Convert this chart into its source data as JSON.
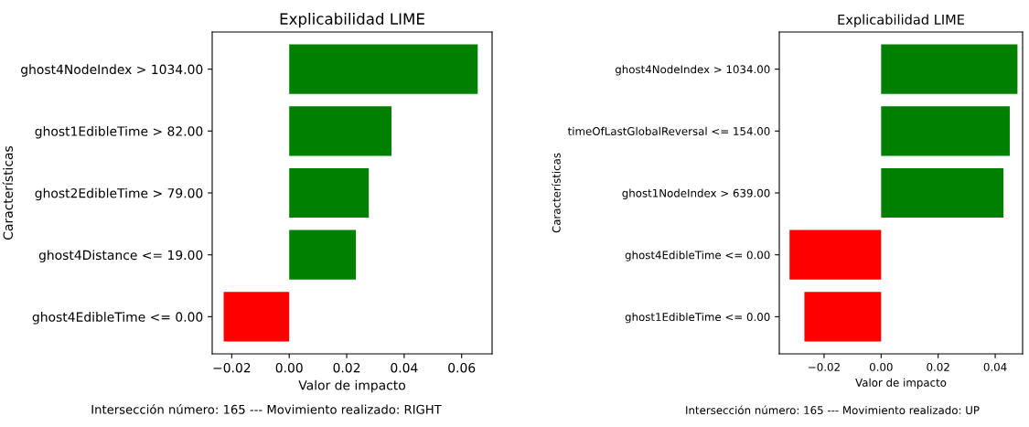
{
  "chart_data": [
    {
      "type": "bar",
      "orientation": "horizontal",
      "title": "Explicabilidad LIME",
      "xlabel": "Valor de impacto",
      "ylabel": "Características",
      "categories": [
        "ghost4NodeIndex > 1034.00",
        "ghost1EdibleTime > 82.00",
        "ghost2EdibleTime > 79.00",
        "ghost4Distance <= 19.00",
        "ghost4EdibleTime <= 0.00"
      ],
      "values": [
        0.0656,
        0.0356,
        0.0277,
        0.0232,
        -0.0228
      ],
      "colors": [
        "#008000",
        "#008000",
        "#008000",
        "#008000",
        "#ff0000"
      ],
      "xlim": [
        -0.0268,
        0.0706
      ],
      "xticks": [
        {
          "value": -0.02,
          "label": "−0.02"
        },
        {
          "value": 0.0,
          "label": "0.00"
        },
        {
          "value": 0.02,
          "label": "0.02"
        },
        {
          "value": 0.04,
          "label": "0.04"
        },
        {
          "value": 0.06,
          "label": "0.06"
        }
      ],
      "grid": false,
      "legend": false,
      "annotations": [
        "Intersección número: 165 --- Movimiento realizado: RIGHT"
      ]
    },
    {
      "type": "bar",
      "orientation": "horizontal",
      "title": "Explicabilidad LIME",
      "xlabel": "Valor de impacto",
      "ylabel": "Características",
      "categories": [
        "ghost4NodeIndex > 1034.00",
        "timeOfLastGlobalReversal <= 154.00",
        "ghost1NodeIndex > 639.00",
        "ghost4EdibleTime <= 0.00",
        "ghost1EdibleTime <= 0.00"
      ],
      "values": [
        0.0478,
        0.0451,
        0.0429,
        -0.0321,
        -0.0269
      ],
      "colors": [
        "#008000",
        "#008000",
        "#008000",
        "#ff0000",
        "#ff0000"
      ],
      "xlim": [
        -0.0357,
        0.0496
      ],
      "xticks": [
        {
          "value": -0.02,
          "label": "−0.02"
        },
        {
          "value": 0.0,
          "label": "0.00"
        },
        {
          "value": 0.02,
          "label": "0.02"
        },
        {
          "value": 0.04,
          "label": "0.04"
        }
      ],
      "grid": false,
      "legend": false,
      "annotations": [
        "Intersección número: 165 --- Movimiento realizado: UP"
      ]
    }
  ]
}
